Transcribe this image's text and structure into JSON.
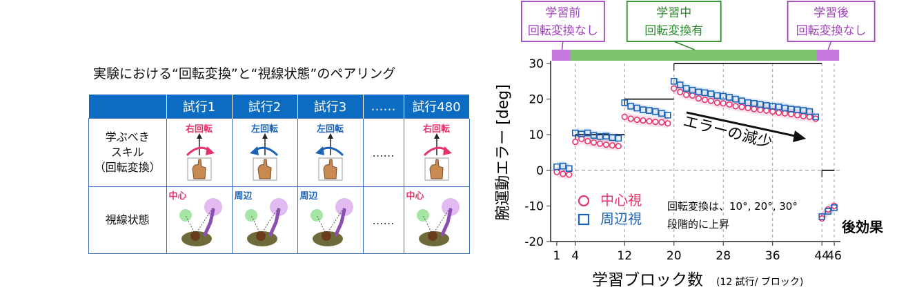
{
  "left_panel": {
    "title": "実験における“回転変換”と“視線状態”のペアリング",
    "columns": [
      "",
      "試行1",
      "試行2",
      "試行3",
      "……",
      "試行480"
    ],
    "row1_label": [
      "学ぶべき",
      "スキル",
      "（回転変換）"
    ],
    "rotations": [
      {
        "label": "右回転",
        "color": "#e8336a",
        "dir": "right"
      },
      {
        "label": "左回転",
        "color": "#1a63b8",
        "dir": "left"
      },
      {
        "label": "左回転",
        "color": "#1a63b8",
        "dir": "left"
      },
      {
        "label": "……",
        "color": "#333333",
        "dir": "none"
      },
      {
        "label": "右回転",
        "color": "#e8336a",
        "dir": "right"
      }
    ],
    "row2_label": "視線状態",
    "gaze": [
      {
        "label": "中心",
        "color": "#e8336a",
        "type": "center"
      },
      {
        "label": "周辺",
        "color": "#1a63b8",
        "type": "periph"
      },
      {
        "label": "周辺",
        "color": "#1a63b8",
        "type": "periph"
      },
      {
        "label": "……",
        "color": "#333333",
        "type": "none"
      },
      {
        "label": "中心",
        "color": "#e8336a",
        "type": "center"
      }
    ]
  },
  "phases": [
    {
      "line1": "学習前",
      "line2": "回転変換なし",
      "color": "#a23fbf",
      "bar": "#c879e0"
    },
    {
      "line1": "学習中",
      "line2": "回転変換有",
      "color": "#2b8a2b",
      "bar": "#7cc46f"
    },
    {
      "line1": "学習後",
      "line2": "回転変換なし",
      "color": "#a23fbf",
      "bar": "#c879e0"
    }
  ],
  "chart_data": {
    "type": "scatter",
    "xlabel": "学習ブロック数",
    "xlabel_note": "(12 試行/ ブロック)",
    "ylabel": "腕運動エラー [deg]",
    "xlim": [
      0,
      47
    ],
    "ylim": [
      -20,
      30
    ],
    "xticks": [
      1,
      4,
      12,
      20,
      28,
      36,
      44,
      46
    ],
    "yticks": [
      30,
      20,
      10,
      0,
      -10,
      -20
    ],
    "phase_blocks": [
      [
        1,
        3
      ],
      [
        4,
        43
      ],
      [
        44,
        46
      ]
    ],
    "stage_dividers": [
      12,
      20,
      44
    ],
    "target_levels": [
      {
        "x": [
          4,
          12
        ],
        "y": 10
      },
      {
        "x": [
          12,
          20
        ],
        "y": 20
      },
      {
        "x": [
          20,
          44
        ],
        "y": 30
      },
      {
        "x": [
          44,
          46
        ],
        "y": 0
      }
    ],
    "series": [
      {
        "name": "中心視",
        "marker": "circle",
        "color": "#e8336a",
        "x": [
          1,
          2,
          3,
          4,
          5,
          6,
          7,
          8,
          9,
          10,
          11,
          12,
          13,
          14,
          15,
          16,
          17,
          18,
          19,
          20,
          21,
          22,
          23,
          24,
          25,
          26,
          27,
          28,
          29,
          30,
          31,
          32,
          33,
          34,
          35,
          36,
          37,
          38,
          39,
          40,
          41,
          42,
          43,
          44,
          45,
          46
        ],
        "y": [
          -0.5,
          -1,
          -1.2,
          8,
          8.8,
          8.2,
          7.8,
          7.5,
          7.2,
          7,
          6.8,
          15,
          14.5,
          14.2,
          14,
          13.8,
          13.6,
          13.5,
          13.2,
          23,
          22,
          21.2,
          21,
          20.2,
          19.8,
          19.5,
          19,
          18.8,
          18.5,
          18,
          17.8,
          17.5,
          17.2,
          17,
          16.8,
          16.5,
          16.2,
          16,
          15.8,
          15.5,
          15.2,
          15,
          14.5,
          -13.5,
          -11,
          -10
        ]
      },
      {
        "name": "周辺視",
        "marker": "square",
        "color": "#1a63b8",
        "x": [
          1,
          2,
          3,
          4,
          5,
          6,
          7,
          8,
          9,
          10,
          11,
          12,
          13,
          14,
          15,
          16,
          17,
          18,
          19,
          20,
          21,
          22,
          23,
          24,
          25,
          26,
          27,
          28,
          29,
          30,
          31,
          32,
          33,
          34,
          35,
          36,
          37,
          38,
          39,
          40,
          41,
          42,
          43,
          44,
          45,
          46
        ],
        "y": [
          1,
          1.2,
          0.5,
          10.5,
          10.2,
          10.5,
          9.8,
          9.5,
          9.6,
          9.2,
          9,
          19,
          18,
          17.5,
          17,
          16.8,
          16.5,
          16,
          15.5,
          25,
          24,
          23,
          22.5,
          22,
          21.8,
          21.5,
          21,
          20.8,
          20.5,
          20,
          19.5,
          19,
          18.8,
          18.5,
          18.2,
          18,
          17.8,
          17.5,
          17.2,
          17,
          16.8,
          16.5,
          15,
          -13,
          -11.5,
          -10.5
        ]
      }
    ],
    "annotations": [
      {
        "text": "エラーの減少",
        "x": 29.5,
        "y": 12
      },
      {
        "text": "回転変換は、10°, 20°, 30°",
        "x": 24.5,
        "y": -10
      },
      {
        "text": "段階的に上昇",
        "x": 24.5,
        "y": -14.5
      },
      {
        "text": "後効果",
        "x": 47.5,
        "y": -16.5
      }
    ]
  }
}
